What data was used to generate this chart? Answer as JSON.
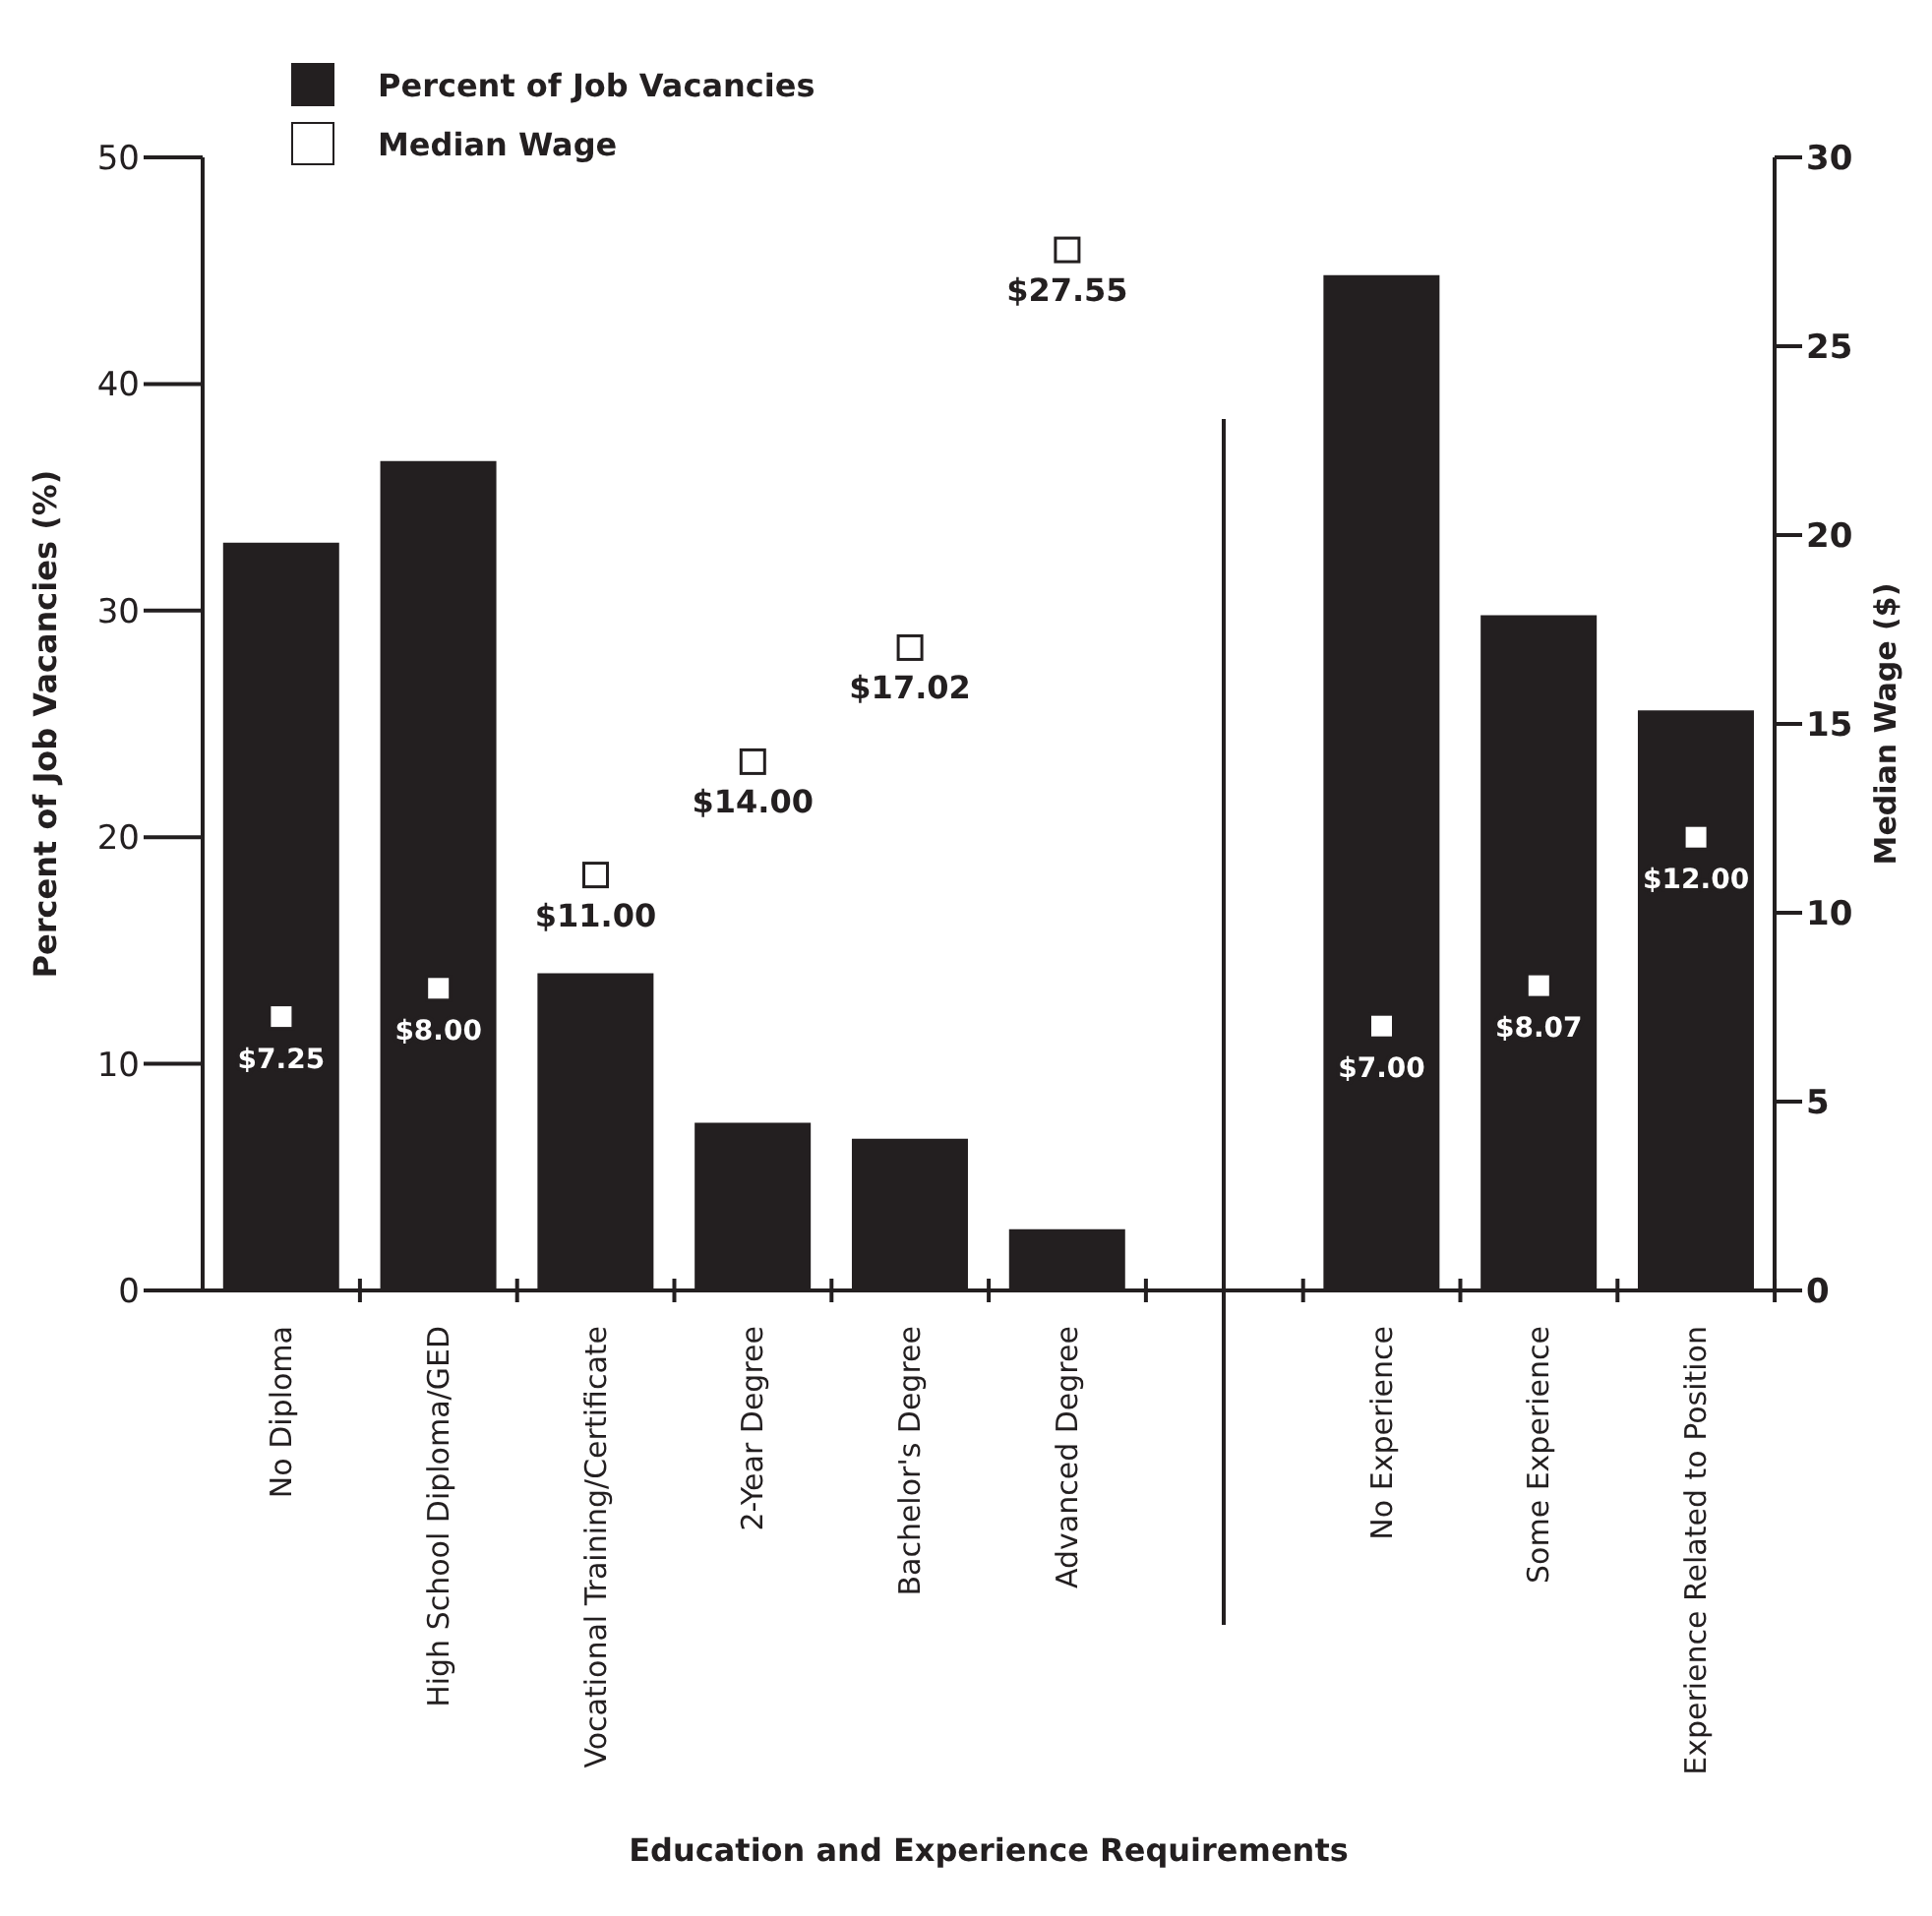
{
  "chart_data": {
    "type": "bar",
    "xlabel": "Education and Experience Requirements",
    "ylabel": "Percent of Job Vacancies (%)",
    "y2label": "Median Wage ($)",
    "categories": [
      "No Diploma",
      "High School Diploma/GED",
      "Vocational Training/Certificate",
      "2-Year Degree",
      "Bachelor's Degree",
      "Advanced Degree",
      null,
      "No Experience",
      "Some Experience",
      "Experience Related to Position"
    ],
    "series": [
      {
        "name": "Percent of Job Vacancies",
        "color": "#231f20",
        "values": [
          33,
          36.6,
          14,
          7.4,
          6.7,
          2.7,
          null,
          44.8,
          29.8,
          25.6
        ]
      },
      {
        "name": "Median Wage",
        "type": "scatter",
        "axis": "y2",
        "color": "#ffffff",
        "values": [
          7.25,
          8,
          11,
          14,
          17.02,
          27.55,
          null,
          7,
          8.07,
          12
        ],
        "value_labels": [
          "$7.25",
          "$8.00",
          "$11.00",
          "$14.00",
          "$17.02",
          "$27.55",
          null,
          "$7.00",
          "$8.07",
          "$12.00"
        ]
      }
    ],
    "ylim": [
      0,
      50
    ],
    "yticks": [
      0,
      10,
      20,
      30,
      40,
      50
    ],
    "y2lim": [
      0,
      30
    ],
    "y2ticks": [
      0,
      5,
      10,
      15,
      20,
      25,
      30
    ],
    "marker": "square",
    "legend": "top left",
    "ref_lines": [
      {
        "axis": "x",
        "value": null,
        "color": "#231f20",
        "line_style": "solid"
      }
    ]
  }
}
